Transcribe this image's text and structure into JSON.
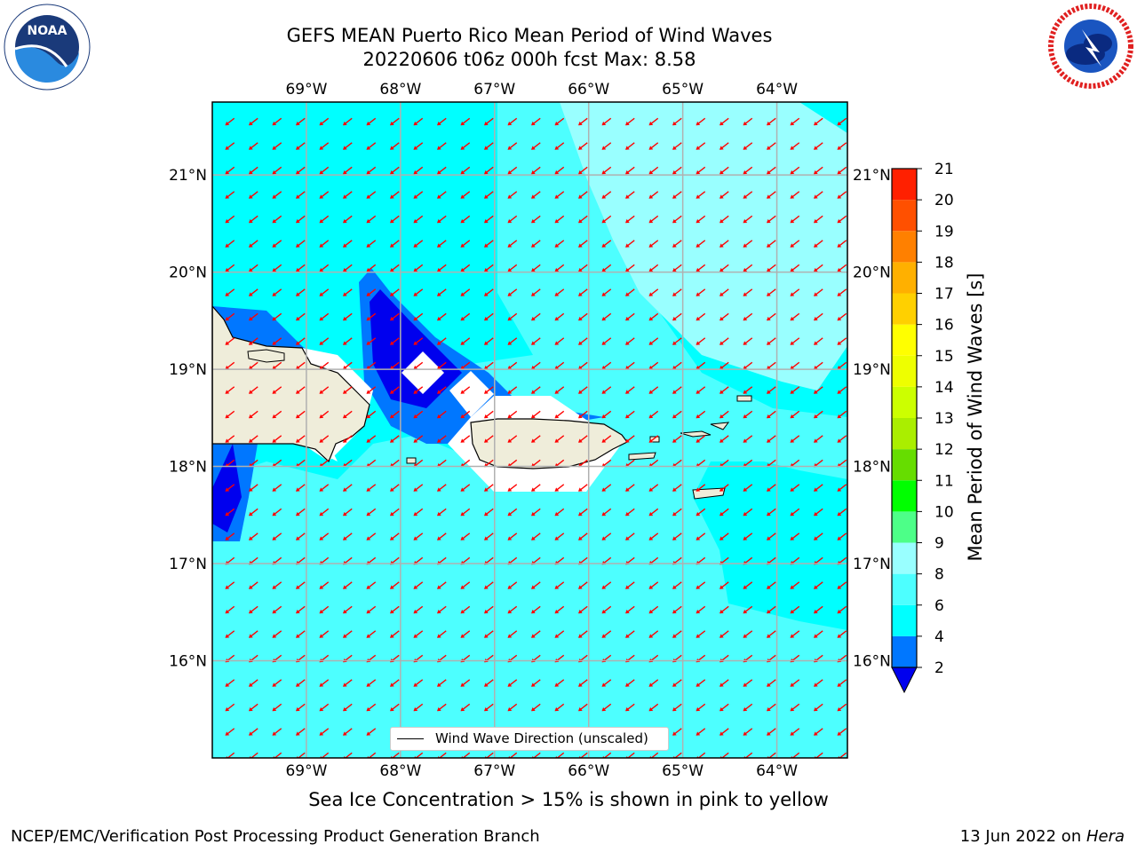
{
  "header": {
    "title_line1": "GEFS MEAN Puerto Rico Mean Period of Wind Waves",
    "title_line2": "20220606 t06z 000h fcst   Max: 8.58"
  },
  "logos": {
    "left": "noaa-logo",
    "right": "national-weather-service-logo"
  },
  "map": {
    "lon_labels": [
      "69°W",
      "68°W",
      "67°W",
      "66°W",
      "65°W",
      "64°W"
    ],
    "lat_labels": [
      "21°N",
      "20°N",
      "19°N",
      "18°N",
      "17°N",
      "16°N"
    ],
    "lon_values": [
      -69,
      -68,
      -67,
      -66,
      -65,
      -64
    ],
    "lat_values": [
      21,
      20,
      19,
      18,
      17,
      16
    ],
    "extent": {
      "lon_min": -70.0,
      "lon_max": -63.25,
      "lat_min": 15.0,
      "lat_max": 21.75
    },
    "arrow_color": "#ff0000",
    "land_color": "#efedda",
    "grid": true
  },
  "legend": {
    "label": "Wind Wave Direction (unscaled)"
  },
  "colorbar": {
    "label": "Mean Period of Wind Waves [s]",
    "ticks": [
      "2",
      "4",
      "6",
      "8",
      "9",
      "10",
      "11",
      "12",
      "13",
      "14",
      "15",
      "16",
      "17",
      "18",
      "19",
      "20",
      "21"
    ],
    "colors": [
      "#0000ee",
      "#0077ff",
      "#00ffff",
      "#4dffff",
      "#99ffff",
      "#4dff88",
      "#00ff00",
      "#66dd00",
      "#aaee00",
      "#ccff00",
      "#eeff00",
      "#ffff00",
      "#ffd000",
      "#ffb000",
      "#ff8000",
      "#ff5000",
      "#ff2000",
      "#ff0000"
    ]
  },
  "notes": {
    "ice_note": "Sea Ice Concentration > 15% is shown in pink to yellow"
  },
  "footer": {
    "left": "NCEP/EMC/Verification Post Processing Product Generation Branch",
    "right_date": "13 Jun 2022 on ",
    "right_machine": "Hera"
  }
}
